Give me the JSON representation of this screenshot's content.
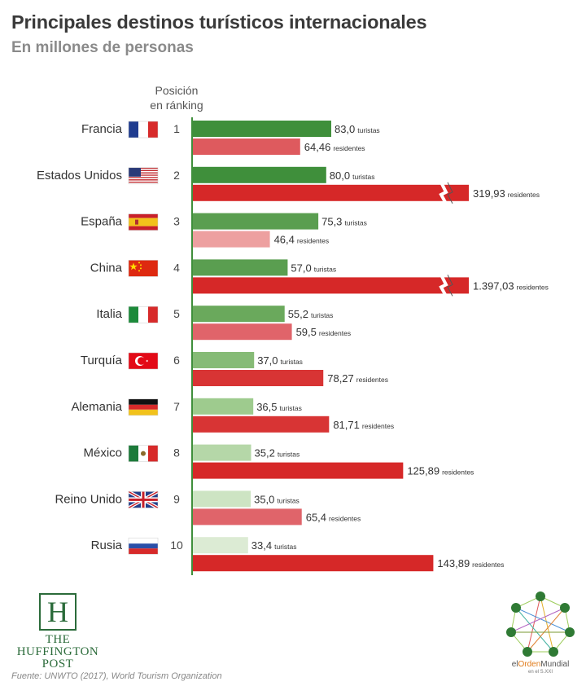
{
  "header": {
    "title": "Principales destinos turísticos internacionales",
    "subtitle": "En millones de personas",
    "rank_label_1": "Posición",
    "rank_label_2": "en ránking"
  },
  "footer": {
    "source": "Fuente: UNWTO (2017), World Tourism Organization",
    "logo_left": [
      "THE",
      "HUFFINGTON",
      "POST"
    ],
    "logo_right": "elOrdenMundial",
    "logo_right_parts": [
      "el",
      "Orden",
      "Mundial"
    ],
    "logo_right_sub": "en el S.XXI"
  },
  "chart_data": {
    "type": "bar",
    "orientation": "horizontal",
    "title": "Principales destinos turísticos internacionales",
    "subtitle": "En millones de personas",
    "categories": [
      "Francia",
      "Estados Unidos",
      "España",
      "China",
      "Italia",
      "Turquía",
      "Alemania",
      "México",
      "Reino Unido",
      "Rusia"
    ],
    "ranks": [
      "1",
      "2",
      "3",
      "4",
      "5",
      "6",
      "7",
      "8",
      "9",
      "10"
    ],
    "flags": [
      "flag-france",
      "flag-usa",
      "flag-spain",
      "flag-china",
      "flag-italy",
      "flag-turkey",
      "flag-germany",
      "flag-mexico",
      "flag-uk",
      "flag-russia"
    ],
    "series": [
      {
        "key": "turistas",
        "values": [
          83.0,
          80.0,
          75.3,
          57.0,
          55.2,
          37.0,
          36.5,
          35.2,
          35.0,
          33.4
        ],
        "labels": [
          "83,0",
          "80,0",
          "75,3",
          "57,0",
          "55,2",
          "37,0",
          "36,5",
          "35,2",
          "35,0",
          "33,4"
        ],
        "suffix": "turistas",
        "colors": [
          "#3f8f3b",
          "#3f8f3b",
          "#5a9e50",
          "#5a9e50",
          "#6aa95c",
          "#86bb76",
          "#9ecb8e",
          "#b5d7a8",
          "#cde4c3",
          "#dcebd4"
        ]
      },
      {
        "key": "residentes",
        "values": [
          64.46,
          319.93,
          46.4,
          1397.03,
          59.5,
          78.27,
          81.71,
          125.89,
          65.4,
          143.89
        ],
        "labels": [
          "64,46",
          "319,93",
          "46,4",
          "1.397,03",
          "59,5",
          "78,27",
          "81,71",
          "125,89",
          "65,4",
          "143,89"
        ],
        "suffix": "residentes",
        "axis_broken": [
          false,
          true,
          false,
          true,
          false,
          false,
          false,
          false,
          false,
          false
        ],
        "colors": [
          "#de5a5e",
          "#d62828",
          "#eda0a0",
          "#d62828",
          "#e0646a",
          "#d83434",
          "#d83434",
          "#d62828",
          "#e0646a",
          "#d62828"
        ]
      }
    ],
    "colors": {
      "turistas": "#3f8f3b",
      "residentes": "#d62828",
      "axis": "#3f8f3b"
    }
  }
}
